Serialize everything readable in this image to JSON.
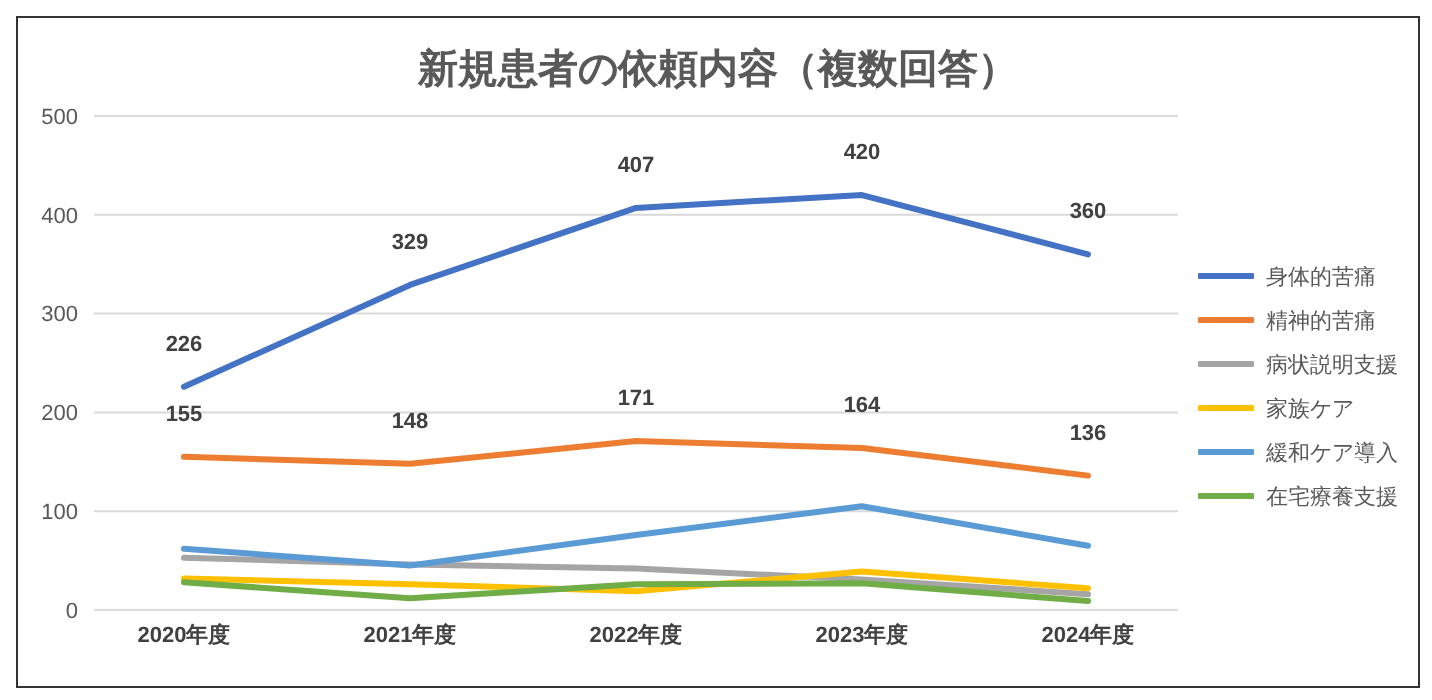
{
  "chart_data": {
    "type": "line",
    "title": "新規患者の依頼内容（複数回答）",
    "categories": [
      "2020年度",
      "2021年度",
      "2022年度",
      "2023年度",
      "2024年度"
    ],
    "series": [
      {
        "name": "身体的苦痛",
        "color": "#4472c4",
        "values": [
          226,
          329,
          407,
          420,
          360
        ],
        "value_labels": [
          "226",
          "329",
          "407",
          "420",
          "360"
        ]
      },
      {
        "name": "精神的苦痛",
        "color": "#ed7d31",
        "values": [
          155,
          148,
          171,
          164,
          136
        ],
        "value_labels": [
          "155",
          "148",
          "171",
          "164",
          "136"
        ]
      },
      {
        "name": "病状説明支援",
        "color": "#a5a5a5",
        "values": [
          53,
          46,
          42,
          31,
          16
        ]
      },
      {
        "name": "家族ケア",
        "color": "#ffc000",
        "values": [
          32,
          26,
          19,
          39,
          22
        ]
      },
      {
        "name": "緩和ケア導入",
        "color": "#5b9bd5",
        "values": [
          62,
          45,
          76,
          105,
          65
        ]
      },
      {
        "name": "在宅療養支援",
        "color": "#70ad47",
        "values": [
          28,
          12,
          26,
          27,
          9
        ]
      }
    ],
    "ylim": [
      0,
      500
    ],
    "yticks": [
      0,
      100,
      200,
      300,
      400,
      500
    ],
    "grid": "y",
    "legend": "right",
    "marker": "none",
    "line_style": "solid"
  }
}
